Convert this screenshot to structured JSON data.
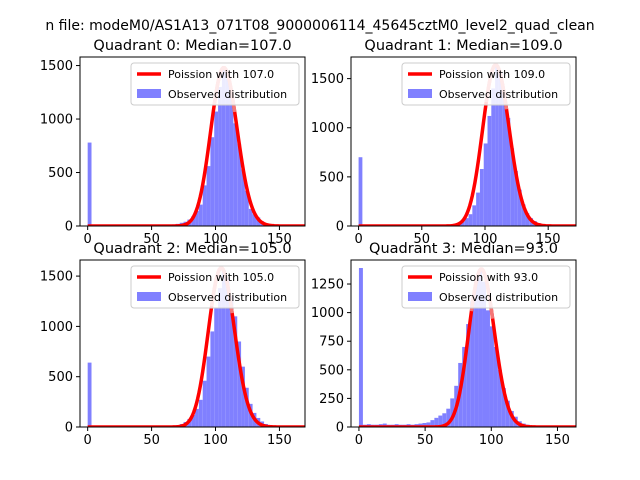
{
  "figure": {
    "suptitle": "n file: modeM0/AS1A13_071T08_9000006114_45645cztM0_level2_quad_clean"
  },
  "colors": {
    "hist": "#8080ff",
    "fit": "#ff0000",
    "fit_highlight": "#f28b8b",
    "axis": "#000000",
    "background": "#ffffff"
  },
  "chart_data": [
    {
      "type": "bar",
      "title": "Quadrant 0: Median=107.0",
      "median": 107.0,
      "xlim": [
        -6,
        170
      ],
      "ylim": [
        0,
        1580
      ],
      "xticks": [
        0,
        50,
        100,
        150
      ],
      "yticks": [
        0,
        500,
        1000,
        1500
      ],
      "legend": {
        "placement": "upper right",
        "fit_label": "Poission with 107.0",
        "hist_label": "Observed distribution"
      },
      "bin_edges": [
        0,
        3,
        6,
        9,
        12,
        15,
        18,
        21,
        24,
        27,
        30,
        33,
        36,
        39,
        42,
        45,
        48,
        51,
        54,
        57,
        60,
        63,
        66,
        69,
        72,
        75,
        78,
        81,
        84,
        87,
        90,
        93,
        96,
        99,
        102,
        105,
        108,
        111,
        114,
        117,
        120,
        123,
        126,
        129,
        132,
        135,
        138,
        141,
        144,
        147,
        150,
        153,
        156,
        159,
        162,
        165
      ],
      "counts": [
        780,
        5,
        5,
        5,
        5,
        5,
        5,
        5,
        5,
        5,
        5,
        5,
        5,
        5,
        5,
        5,
        5,
        5,
        5,
        5,
        5,
        5,
        15,
        20,
        30,
        40,
        60,
        90,
        140,
        200,
        380,
        560,
        830,
        1070,
        1300,
        1490,
        1380,
        1200,
        960,
        770,
        530,
        330,
        160,
        110,
        80,
        45,
        25,
        15,
        10,
        7,
        5,
        5,
        5,
        5,
        5
      ],
      "fit": {
        "mu": 107.0,
        "scale": 1480
      }
    },
    {
      "type": "bar",
      "title": "Quadrant 1: Median=109.0",
      "median": 109.0,
      "xlim": [
        -6,
        172
      ],
      "ylim": [
        0,
        1720
      ],
      "xticks": [
        0,
        50,
        100,
        150
      ],
      "yticks": [
        0,
        500,
        1000,
        1500
      ],
      "legend": {
        "placement": "upper right",
        "fit_label": "Poission with 109.0",
        "hist_label": "Observed distribution"
      },
      "bin_edges": [
        0,
        3,
        6,
        9,
        12,
        15,
        18,
        21,
        24,
        27,
        30,
        33,
        36,
        39,
        42,
        45,
        48,
        51,
        54,
        57,
        60,
        63,
        66,
        69,
        72,
        75,
        78,
        81,
        84,
        87,
        90,
        93,
        96,
        99,
        102,
        105,
        108,
        111,
        114,
        117,
        120,
        123,
        126,
        129,
        132,
        135,
        138,
        141,
        144,
        147,
        150,
        153,
        156,
        159,
        162,
        165,
        168
      ],
      "counts": [
        700,
        5,
        5,
        5,
        5,
        5,
        5,
        5,
        5,
        5,
        5,
        5,
        5,
        5,
        5,
        5,
        5,
        5,
        5,
        5,
        5,
        5,
        5,
        5,
        10,
        20,
        30,
        50,
        80,
        120,
        210,
        340,
        580,
        840,
        1120,
        1400,
        1620,
        1560,
        1340,
        1100,
        790,
        560,
        370,
        220,
        130,
        80,
        50,
        30,
        20,
        10,
        5,
        5,
        5,
        5,
        5,
        5
      ],
      "fit": {
        "mu": 109.0,
        "scale": 1640
      }
    },
    {
      "type": "bar",
      "title": "Quadrant 2: Median=105.0",
      "median": 105.0,
      "xlim": [
        -6,
        170
      ],
      "ylim": [
        0,
        1660
      ],
      "xticks": [
        0,
        50,
        100,
        150
      ],
      "yticks": [
        0,
        500,
        1000,
        1500
      ],
      "legend": {
        "placement": "upper right",
        "fit_label": "Poission with 105.0",
        "hist_label": "Observed distribution"
      },
      "bin_edges": [
        0,
        3,
        6,
        9,
        12,
        15,
        18,
        21,
        24,
        27,
        30,
        33,
        36,
        39,
        42,
        45,
        48,
        51,
        54,
        57,
        60,
        63,
        66,
        69,
        72,
        75,
        78,
        81,
        84,
        87,
        90,
        93,
        96,
        99,
        102,
        105,
        108,
        111,
        114,
        117,
        120,
        123,
        126,
        129,
        132,
        135,
        138,
        141,
        144,
        147,
        150,
        153,
        156,
        159,
        162,
        165
      ],
      "counts": [
        640,
        5,
        5,
        5,
        5,
        5,
        5,
        5,
        5,
        5,
        5,
        5,
        5,
        5,
        5,
        5,
        5,
        5,
        5,
        5,
        5,
        5,
        10,
        20,
        30,
        50,
        80,
        120,
        180,
        270,
        460,
        700,
        950,
        1180,
        1380,
        1560,
        1480,
        1300,
        1100,
        850,
        600,
        390,
        230,
        140,
        90,
        55,
        30,
        20,
        12,
        8,
        5,
        5,
        5,
        5,
        5
      ],
      "fit": {
        "mu": 105.0,
        "scale": 1580
      }
    },
    {
      "type": "bar",
      "title": "Quadrant 3: Median=93.0",
      "median": 93.0,
      "xlim": [
        -6,
        164
      ],
      "ylim": [
        0,
        1460
      ],
      "xticks": [
        0,
        50,
        100,
        150
      ],
      "yticks": [
        0,
        250,
        500,
        750,
        1000,
        1250
      ],
      "legend": {
        "placement": "upper right",
        "fit_label": "Poission with 93.0",
        "hist_label": "Observed distribution"
      },
      "bin_edges": [
        0,
        3,
        6,
        9,
        12,
        15,
        18,
        21,
        24,
        27,
        30,
        33,
        36,
        39,
        42,
        45,
        48,
        51,
        54,
        57,
        60,
        63,
        66,
        69,
        72,
        75,
        78,
        81,
        84,
        87,
        90,
        93,
        96,
        99,
        102,
        105,
        108,
        111,
        114,
        117,
        120,
        123,
        126,
        129,
        132,
        135,
        138,
        141,
        144,
        147,
        150,
        153,
        156,
        159
      ],
      "counts": [
        1390,
        20,
        25,
        20,
        20,
        25,
        30,
        20,
        20,
        25,
        20,
        20,
        25,
        20,
        25,
        30,
        35,
        40,
        60,
        80,
        100,
        120,
        160,
        250,
        360,
        560,
        700,
        900,
        1100,
        1270,
        1380,
        1270,
        1020,
        880,
        700,
        500,
        340,
        230,
        140,
        90,
        50,
        30,
        20,
        12,
        8,
        5,
        5,
        5,
        5,
        5,
        5,
        5,
        5
      ],
      "fit": {
        "mu": 93.0,
        "scale": 1380
      }
    }
  ]
}
